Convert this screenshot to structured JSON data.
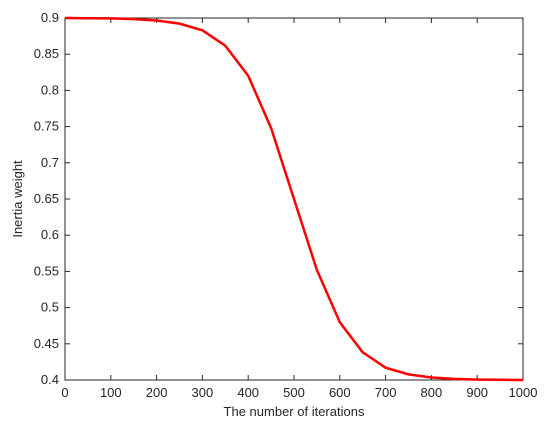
{
  "chart_data": {
    "type": "line",
    "x_label": "The number of iterations",
    "y_label": "Inertia weight",
    "x": [
      0,
      50,
      100,
      150,
      200,
      250,
      300,
      350,
      400,
      450,
      500,
      550,
      600,
      650,
      700,
      750,
      800,
      850,
      900,
      950,
      1000
    ],
    "series": [
      {
        "name": "Inertia weight",
        "color": "#ff0000",
        "values": [
          0.9,
          0.8997,
          0.8994,
          0.8985,
          0.8966,
          0.8922,
          0.883,
          0.8617,
          0.8202,
          0.748,
          0.65,
          0.552,
          0.4798,
          0.4383,
          0.417,
          0.4078,
          0.4034,
          0.4015,
          0.4006,
          0.4003,
          0.4
        ]
      }
    ],
    "xlim": [
      0,
      1000
    ],
    "xticks": [
      0,
      100,
      200,
      300,
      400,
      500,
      600,
      700,
      800,
      900,
      1000
    ],
    "ylim": [
      0.4,
      0.9
    ],
    "yticks": [
      0.4,
      0.45,
      0.5,
      0.55,
      0.6,
      0.65,
      0.7,
      0.75,
      0.8,
      0.85,
      0.9
    ]
  }
}
